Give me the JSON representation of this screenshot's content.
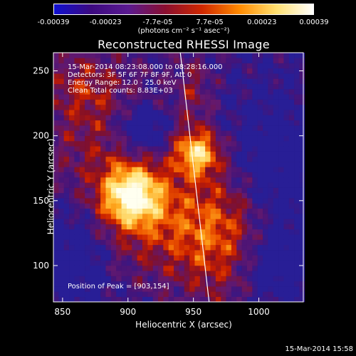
{
  "colorbar": {
    "tick_labels": [
      "-0.00039",
      "-0.00023",
      "-7.7e-05",
      "7.7e-05",
      "0.00023",
      "0.00039"
    ],
    "units_label": "(photons cm⁻² s⁻¹ asec⁻²)",
    "range": [
      -0.00039,
      0.00039
    ],
    "colors": [
      "#1010d0",
      "#3c0a80",
      "#5a1a90",
      "#8a0f30",
      "#d02800",
      "#ff8a00",
      "#ffe070",
      "#ffffff"
    ]
  },
  "info": {
    "time_range": "15-Mar-2014 08:23:08.000 to 08:28:16.000",
    "detectors": "Detectors: 3F 5F 6F 7F 8F 9F, Att 0",
    "energy": "Energy Range: 12.0 - 25.0 keV",
    "method": "Clean     Total counts: 8.83E+03",
    "peak": "Position of Peak = [903,154]"
  },
  "timestamp": "15-Mar-2014 15:58",
  "chart_data": {
    "type": "heatmap",
    "title": "Reconstructed RHESSI Image",
    "xlabel": "Heliocentric X (arcsec)",
    "ylabel": "Heliocentric Y (arcsec)",
    "xlim": [
      843,
      1034
    ],
    "ylim": [
      72,
      264
    ],
    "xticks": [
      850,
      900,
      950,
      1000
    ],
    "yticks": [
      100,
      150,
      200,
      250
    ],
    "peak": [
      903,
      154
    ],
    "limb_line": [
      [
        940,
        264
      ],
      [
        962,
        72
      ]
    ]
  }
}
